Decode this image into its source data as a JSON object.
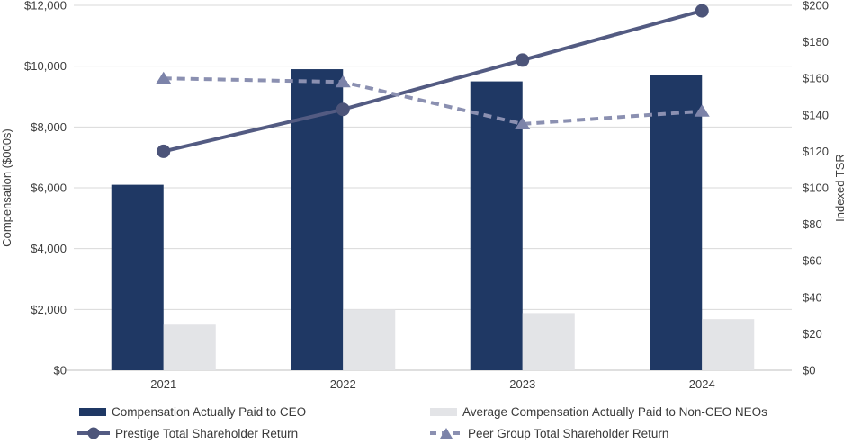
{
  "chart_data": {
    "type": "combo-bar-line",
    "title": "",
    "categories": [
      "2021",
      "2022",
      "2023",
      "2024"
    ],
    "bar_series": [
      {
        "name": "Compensation Actually Paid to CEO",
        "axis": "left",
        "color": "#1F3864",
        "values": [
          6100,
          9900,
          9500,
          9700
        ]
      },
      {
        "name": "Average Compensation Actually Paid to Non-CEO NEOs",
        "axis": "left",
        "color": "#E3E4E7",
        "values": [
          1500,
          2000,
          1880,
          1680
        ]
      }
    ],
    "line_series": [
      {
        "name": "Prestige Total Shareholder Return",
        "axis": "right",
        "color": "#535B82",
        "marker": "circle",
        "marker_color": "#4C5479",
        "dash": false,
        "values": [
          120,
          143,
          170,
          197
        ]
      },
      {
        "name": "Peer Group Total Shareholder Return",
        "axis": "right",
        "color": "#8B90B1",
        "marker": "triangle",
        "marker_color": "#7C83A9",
        "dash": true,
        "values": [
          160,
          158,
          135,
          142
        ]
      }
    ],
    "left_axis": {
      "title": "Compensation ($000s)",
      "min": 0,
      "max": 12000,
      "step": 2000,
      "tick_values": [
        0,
        2000,
        4000,
        6000,
        8000,
        10000,
        12000
      ],
      "tick_labels": [
        "$0",
        "$2,000",
        "$4,000",
        "$6,000",
        "$8,000",
        "$10,000",
        "$12,000"
      ]
    },
    "right_axis": {
      "title": "Indexed TSR",
      "min": 0,
      "max": 200,
      "step": 20,
      "tick_values": [
        0,
        20,
        40,
        60,
        80,
        100,
        120,
        140,
        160,
        180,
        200
      ],
      "tick_labels": [
        "$0",
        "$20",
        "$40",
        "$60",
        "$80",
        "$100",
        "$120",
        "$140",
        "$160",
        "$180",
        "$200"
      ]
    },
    "grid": "horizontal",
    "colors": {
      "gridline": "#D9D9D9",
      "baseline": "#BFBFBF",
      "text": "#3D3D3D"
    },
    "legend_position": "bottom-two-columns"
  },
  "legend": {
    "items": [
      {
        "label": "Compensation Actually Paid to CEO"
      },
      {
        "label": "Average Compensation Actually Paid to Non-CEO NEOs"
      },
      {
        "label": "Prestige Total Shareholder Return"
      },
      {
        "label": "Peer Group Total Shareholder Return"
      }
    ]
  }
}
